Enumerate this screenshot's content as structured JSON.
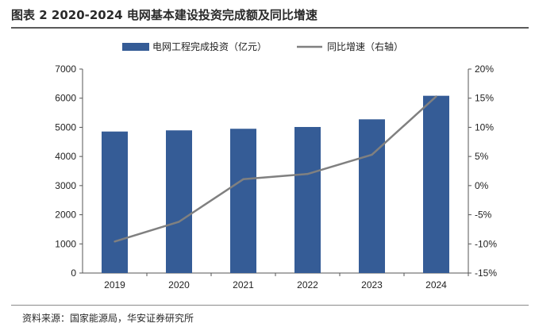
{
  "header": {
    "title": "图表 2 2020-2024 电网基本建设投资完成额及同比增速"
  },
  "footer": {
    "source": "资料来源：国家能源局，华安证券研究所"
  },
  "chart_data": {
    "type": "bar",
    "categories": [
      "2019",
      "2020",
      "2021",
      "2022",
      "2023",
      "2024"
    ],
    "series": [
      {
        "name": "电网工程完成投资（亿元）",
        "type": "bar",
        "axis": "left",
        "values": [
          4856,
          4896,
          4951,
          5012,
          5275,
          6083
        ],
        "color": "#355c96"
      },
      {
        "name": "同比增速（右轴）",
        "type": "line",
        "axis": "right",
        "values": [
          -9.6,
          -6.2,
          1.1,
          2.0,
          5.3,
          15.3
        ],
        "color": "#808080"
      }
    ],
    "ylim": [
      0,
      7000
    ],
    "y_ticks": [
      "0",
      "1000",
      "2000",
      "3000",
      "4000",
      "5000",
      "6000",
      "7000"
    ],
    "y2lim": [
      -15,
      20
    ],
    "y2_ticks": [
      "-15%",
      "-10%",
      "-5%",
      "0%",
      "5%",
      "10%",
      "15%",
      "20%"
    ],
    "legend_position": "top",
    "grid": false
  }
}
